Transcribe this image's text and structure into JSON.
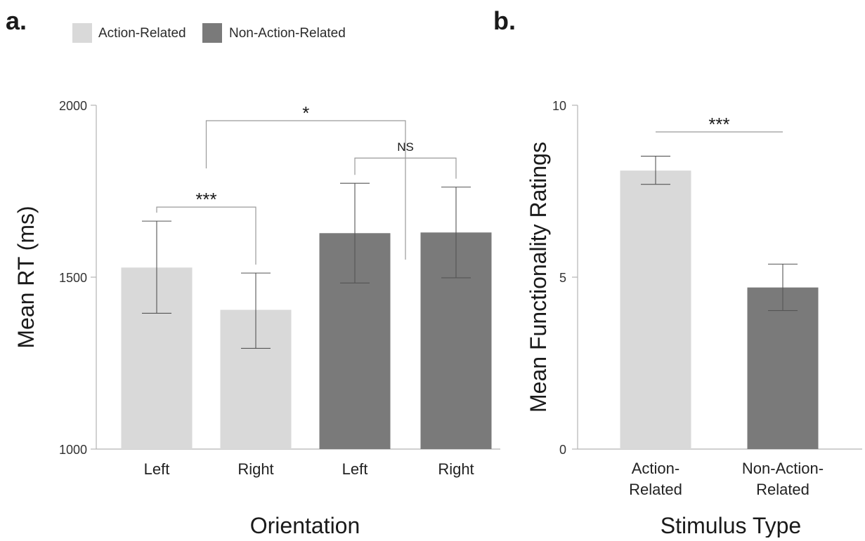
{
  "panels": {
    "a": {
      "label": "a."
    },
    "b": {
      "label": "b."
    }
  },
  "legend": [
    {
      "label": "Action-Related",
      "color": "#d9d9d9"
    },
    {
      "label": "Non-Action-Related",
      "color": "#7a7a7a"
    }
  ],
  "chart_data": [
    {
      "type": "bar",
      "panel": "a",
      "categories": [
        "Left",
        "Right",
        "Left",
        "Right"
      ],
      "series_of_category": [
        "Action-Related",
        "Action-Related",
        "Non-Action-Related",
        "Non-Action-Related"
      ],
      "values": [
        1528,
        1405,
        1628,
        1630
      ],
      "error_low": [
        1395,
        1293,
        1483,
        1498
      ],
      "error_high": [
        1663,
        1512,
        1773,
        1762
      ],
      "xlabel": "Orientation",
      "ylabel": "Mean RT (ms)",
      "ylim": [
        1000,
        2000
      ],
      "yticks": [
        "1000",
        "1500",
        "2000"
      ],
      "annotations": [
        {
          "text": "***",
          "from": 0,
          "to": 1
        },
        {
          "text": "NS",
          "from": 2,
          "to": 3
        },
        {
          "text": "*",
          "from": 0.5,
          "to": 2.5
        }
      ],
      "grid": false
    },
    {
      "type": "bar",
      "panel": "b",
      "categories": [
        "Action-Related",
        "Non-Action-Related"
      ],
      "category_lines": [
        [
          "Action-",
          "Related"
        ],
        [
          "Non-Action-",
          "Related"
        ]
      ],
      "series_of_category": [
        "Action-Related",
        "Non-Action-Related"
      ],
      "values": [
        8.1,
        4.7
      ],
      "error_low": [
        7.7,
        4.03
      ],
      "error_high": [
        8.52,
        5.38
      ],
      "xlabel": "Stimulus Type",
      "ylabel": "Mean Functionality Ratings",
      "ylim": [
        0,
        10
      ],
      "yticks": [
        "0",
        "5",
        "10"
      ],
      "annotations": [
        {
          "text": "***",
          "from": 0,
          "to": 1
        }
      ],
      "grid": false
    }
  ]
}
